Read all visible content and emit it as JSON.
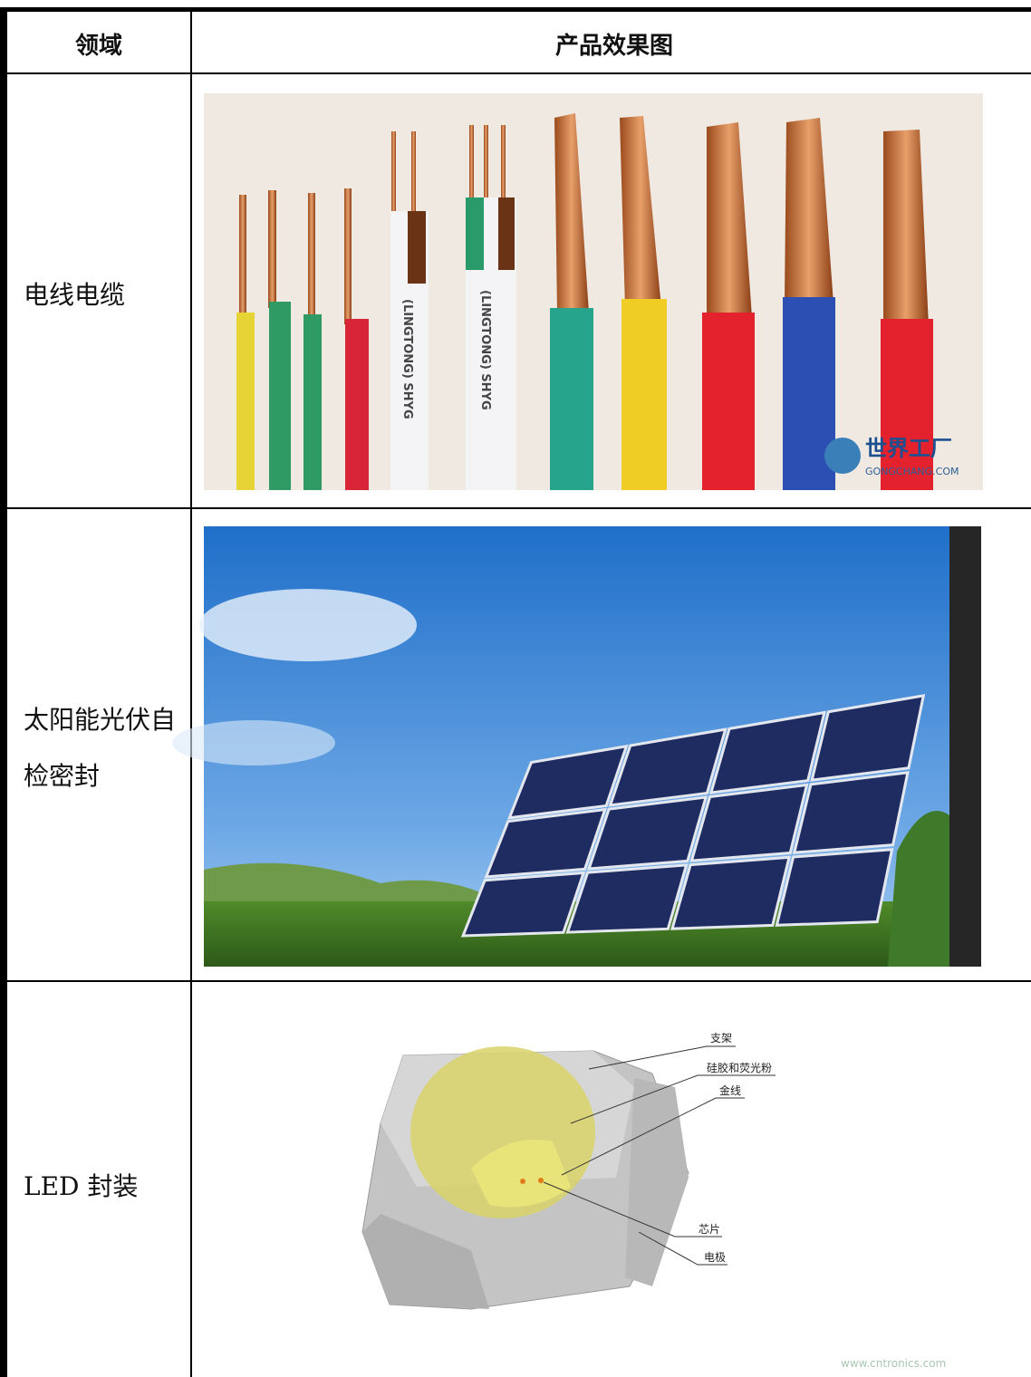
{
  "header": {
    "field": "领域",
    "product": "产品效果图"
  },
  "rows": [
    {
      "field": "电线电缆",
      "image_texts": [
        "(LINGTONG) SHYG",
        "(LINGTONG) SHYG",
        "世界工厂",
        "GONGCHANG.COM"
      ]
    },
    {
      "field": "太阳能光伏自检密封"
    },
    {
      "field": "LED 封装",
      "image_texts": [
        "支架",
        "硅胶和荧光粉",
        "金线",
        "芯片",
        "电极",
        "www.cntronics.com"
      ]
    }
  ]
}
